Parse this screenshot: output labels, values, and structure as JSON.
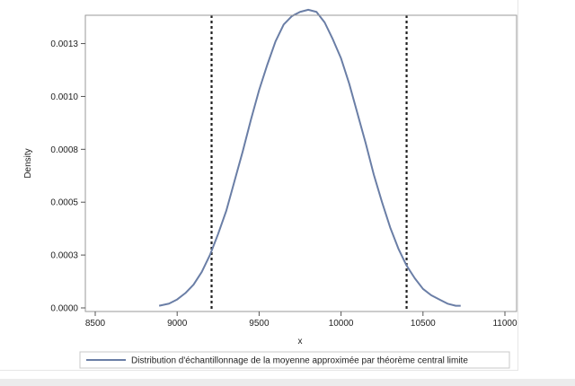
{
  "chart_data": {
    "type": "line",
    "title": "",
    "xlabel": "x",
    "ylabel": "Density",
    "xlim": [
      8500,
      11000
    ],
    "ylim": [
      0,
      0.00135
    ],
    "x_ticks": [
      8500,
      9000,
      9500,
      10000,
      10500,
      11000
    ],
    "y_ticks": [
      0,
      0.00025,
      0.0005,
      0.00075,
      0.001,
      0.00125
    ],
    "y_tick_labels": [
      "0.0000",
      "0.0003",
      "0.0005",
      "0.0008",
      "0.0010",
      "0.0013"
    ],
    "grid": false,
    "legend_position": "bottom",
    "series": [
      {
        "name": "Distribution d'échantillonnage de la moyenne approximée par théorème central limite",
        "color": "#6a7ea6",
        "x": [
          8890,
          8950,
          9000,
          9050,
          9100,
          9150,
          9200,
          9250,
          9300,
          9350,
          9400,
          9450,
          9500,
          9550,
          9600,
          9650,
          9700,
          9750,
          9800,
          9850,
          9900,
          9950,
          10000,
          10050,
          10100,
          10150,
          10200,
          10250,
          10300,
          10350,
          10400,
          10450,
          10500,
          10550,
          10600,
          10650,
          10700,
          10730
        ],
        "y": [
          1e-05,
          2e-05,
          4e-05,
          7e-05,
          0.00011,
          0.00017,
          0.00025,
          0.00035,
          0.00046,
          0.0006,
          0.00074,
          0.00089,
          0.00103,
          0.00115,
          0.00126,
          0.00134,
          0.00138,
          0.0014,
          0.00141,
          0.0014,
          0.00135,
          0.00127,
          0.00118,
          0.00106,
          0.00092,
          0.00078,
          0.00063,
          0.0005,
          0.00038,
          0.00028,
          0.0002,
          0.00014,
          9e-05,
          6e-05,
          4e-05,
          2e-05,
          1e-05,
          1e-05
        ]
      }
    ],
    "reference_lines": [
      {
        "axis": "x",
        "value": 9210,
        "style": "dashed",
        "color": "#222222"
      },
      {
        "axis": "x",
        "value": 10400,
        "style": "dashed",
        "color": "#222222"
      }
    ]
  }
}
